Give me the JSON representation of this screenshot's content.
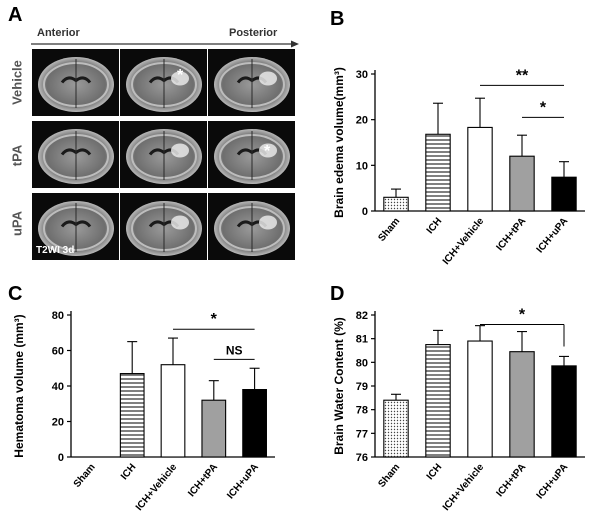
{
  "panel_letters": {
    "a": "A",
    "b": "B",
    "c": "C",
    "d": "D"
  },
  "mri": {
    "direction_start": "Anterior",
    "direction_end": "Posterior",
    "rows": [
      "Vehicle",
      "tPA",
      "uPA"
    ],
    "caption": "T2WI 3d",
    "asterisk": "*"
  },
  "chart_data": [
    {
      "id": "B",
      "type": "bar",
      "title": "",
      "ylabel": "Brain edema volume(mm³)",
      "xlabel": "",
      "ylim": [
        0,
        30
      ],
      "yticks": [
        "0",
        "10",
        "20",
        "30"
      ],
      "categories": [
        "Sham",
        "ICH",
        "ICH+Vehicle",
        "ICH+tPA",
        "ICH+uPA"
      ],
      "values": [
        3.0,
        16.8,
        18.3,
        12.0,
        7.4
      ],
      "errors": [
        1.8,
        6.8,
        6.4,
        4.6,
        3.4
      ],
      "fills": [
        "dots",
        "hlines",
        "#ffffff",
        "#a0a0a0",
        "#000000"
      ],
      "significance": [
        {
          "from": 2,
          "to": 4,
          "label": "**",
          "y": 27.5
        },
        {
          "from": 3,
          "to": 4,
          "label": "*",
          "y": 20.5
        }
      ]
    },
    {
      "id": "C",
      "type": "bar",
      "title": "",
      "ylabel": "Hematoma volume (mm³)",
      "xlabel": "",
      "ylim": [
        0,
        80
      ],
      "yticks": [
        "0",
        "20",
        "40",
        "60",
        "80"
      ],
      "categories": [
        "Sham",
        "ICH",
        "ICH+Vehicle",
        "ICH+tPA",
        "ICH+uPA"
      ],
      "values": [
        0,
        47,
        52,
        32,
        38
      ],
      "errors": [
        0,
        18,
        15,
        11,
        12
      ],
      "fills": [
        "dots",
        "hlines",
        "#ffffff",
        "#a0a0a0",
        "#000000"
      ],
      "significance": [
        {
          "from": 2,
          "to": 4,
          "label": "*",
          "y": 72
        },
        {
          "from": 3,
          "to": 4,
          "label": "NS",
          "y": 55
        }
      ]
    },
    {
      "id": "D",
      "type": "bar",
      "title": "",
      "ylabel": "Brain Water Content (%)",
      "xlabel": "",
      "ylim": [
        76,
        82
      ],
      "yticks": [
        "76",
        "77",
        "78",
        "79",
        "80",
        "81",
        "82"
      ],
      "categories": [
        "Sham",
        "ICH",
        "ICH+Vehicle",
        "ICH+tPA",
        "ICH+uPA"
      ],
      "values": [
        78.4,
        80.75,
        80.9,
        80.45,
        79.85
      ],
      "errors": [
        0.25,
        0.6,
        0.65,
        0.85,
        0.4
      ],
      "fills": [
        "dots",
        "hlines",
        "#ffffff",
        "#a0a0a0",
        "#000000"
      ],
      "significance": [
        {
          "from": 2,
          "to": 4,
          "label": "*",
          "y": 81.6,
          "bracket": "down-right"
        }
      ]
    }
  ]
}
